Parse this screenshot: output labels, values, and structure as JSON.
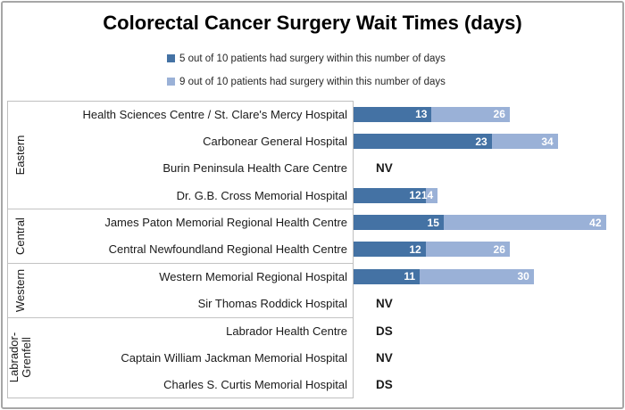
{
  "title": "Colorectal Cancer Surgery Wait Times (days)",
  "chart_data": {
    "type": "bar",
    "orientation": "horizontal",
    "stacked": true,
    "grid": false,
    "xlim": [
      0,
      44
    ],
    "legend_position": "top-center-stacked",
    "title": "Colorectal Cancer Surgery Wait Times (days)",
    "series": [
      {
        "name": "5 out of 10 patients had surgery within this number of days",
        "color": "#4472a4"
      },
      {
        "name": "9 out of 10 patients had surgery within this number of days",
        "color": "#9ab1d7"
      }
    ],
    "groups": [
      {
        "region": "Eastern",
        "region_display": "Eastern",
        "hospitals": [
          {
            "name": "Health Sciences Centre / St. Clare's Mercy Hospital",
            "values": [
              13,
              26
            ]
          },
          {
            "name": "Carbonear General Hospital",
            "values": [
              23,
              34
            ]
          },
          {
            "name": "Burin Peninsula Health Care Centre",
            "note": "NV"
          },
          {
            "name": "Dr. G.B. Cross Memorial Hospital",
            "values": [
              12,
              14
            ]
          }
        ]
      },
      {
        "region": "Central",
        "region_display": "Central",
        "hospitals": [
          {
            "name": "James Paton Memorial Regional Health Centre",
            "values": [
              15,
              42
            ]
          },
          {
            "name": "Central Newfoundland Regional Health Centre",
            "values": [
              12,
              26
            ]
          }
        ]
      },
      {
        "region": "Western",
        "region_display": "Western",
        "hospitals": [
          {
            "name": "Western Memorial Regional Hospital",
            "values": [
              11,
              30
            ]
          },
          {
            "name": "Sir Thomas Roddick Hospital",
            "note": "NV"
          }
        ]
      },
      {
        "region": "Labrador-Grenfell",
        "region_display": "Labrador-\nGrenfell",
        "hospitals": [
          {
            "name": "Labrador Health Centre",
            "note": "DS"
          },
          {
            "name": "Captain William Jackman Memorial Hospital",
            "note": "NV"
          },
          {
            "name": "Charles S. Curtis Memorial Hospital",
            "note": "DS"
          }
        ]
      }
    ]
  }
}
